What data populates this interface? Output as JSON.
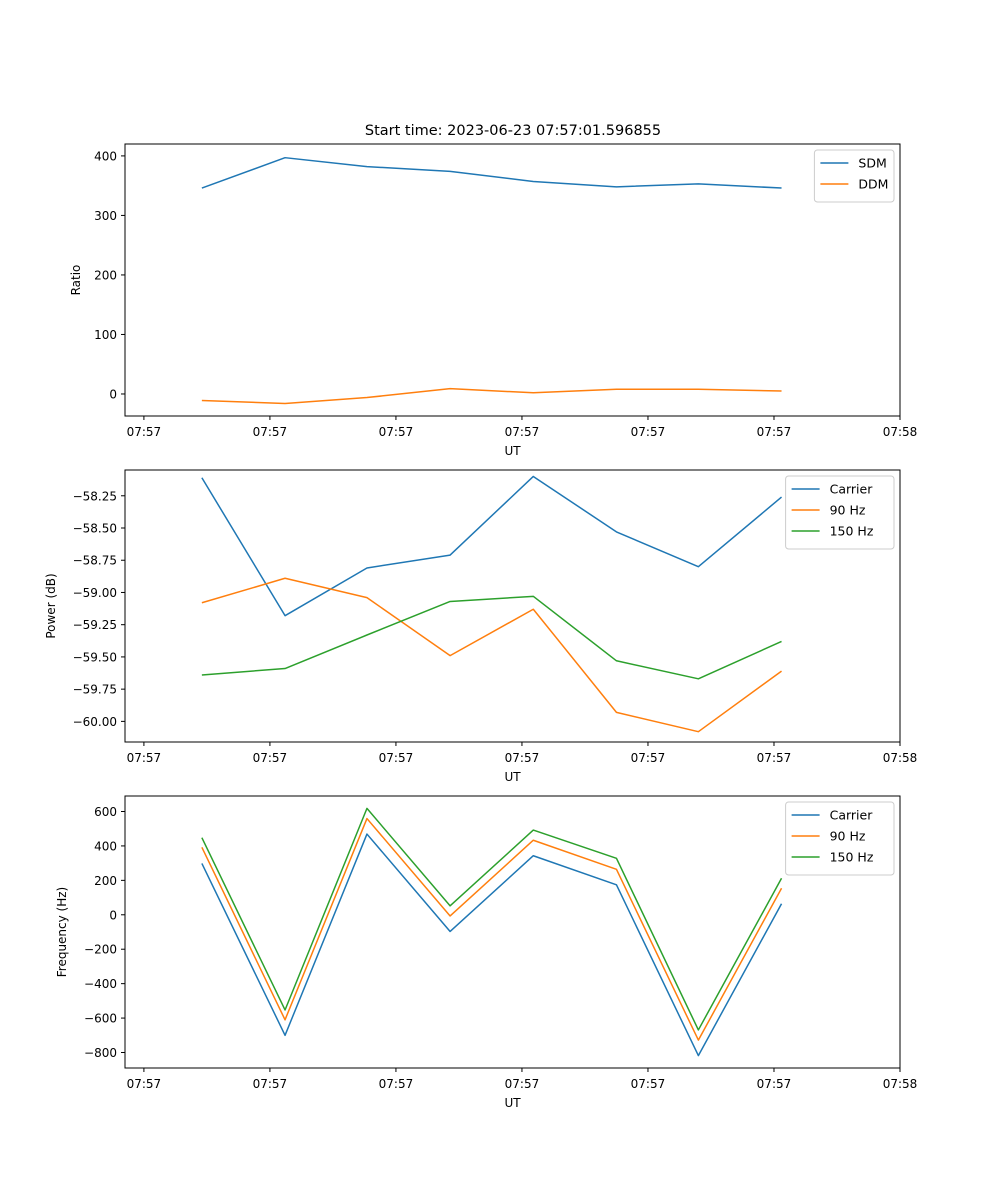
{
  "title": "Start time: 2023-06-23 07:57:01.596855",
  "colors": {
    "blue": "#1f77b4",
    "orange": "#ff7f0e",
    "green": "#2ca02c"
  },
  "chart_data": [
    {
      "type": "line",
      "xlabel": "UT",
      "ylabel": "Ratio",
      "x_tick_labels": [
        "07:57",
        "07:57",
        "07:57",
        "07:57",
        "07:57",
        "07:57",
        "07:58"
      ],
      "x_ticks": [
        0,
        1,
        2,
        3,
        4,
        5,
        6
      ],
      "xlim": [
        -0.15,
        6.0
      ],
      "x": [
        0.46,
        1.12,
        1.77,
        2.43,
        3.09,
        3.75,
        4.4,
        5.06
      ],
      "ylim": [
        -37,
        420
      ],
      "yticks": [
        0,
        100,
        200,
        300,
        400
      ],
      "ytick_labels": [
        "0",
        "100",
        "200",
        "300",
        "400"
      ],
      "grid": false,
      "legend": "top-right",
      "series": [
        {
          "name": "SDM",
          "color": "#1f77b4",
          "values": [
            346,
            397,
            382,
            374,
            357,
            348,
            353,
            346
          ]
        },
        {
          "name": "DDM",
          "color": "#ff7f0e",
          "values": [
            -11,
            -16,
            -6,
            9,
            2,
            8,
            8,
            5
          ]
        }
      ]
    },
    {
      "type": "line",
      "xlabel": "UT",
      "ylabel": "Power (dB)",
      "x_tick_labels": [
        "07:57",
        "07:57",
        "07:57",
        "07:57",
        "07:57",
        "07:57",
        "07:58"
      ],
      "x_ticks": [
        0,
        1,
        2,
        3,
        4,
        5,
        6
      ],
      "xlim": [
        -0.15,
        6.0
      ],
      "x": [
        0.46,
        1.12,
        1.77,
        2.43,
        3.09,
        3.75,
        4.4,
        5.06
      ],
      "ylim": [
        -60.16,
        -58.05
      ],
      "yticks": [
        -60.0,
        -59.75,
        -59.5,
        -59.25,
        -59.0,
        -58.75,
        -58.5,
        -58.25
      ],
      "ytick_labels": [
        "−60.00",
        "−59.75",
        "−59.50",
        "−59.25",
        "−59.00",
        "−58.75",
        "−58.50",
        "−58.25"
      ],
      "grid": false,
      "legend": "top-right",
      "series": [
        {
          "name": "Carrier",
          "color": "#1f77b4",
          "values": [
            -58.11,
            -59.18,
            -58.81,
            -58.71,
            -58.1,
            -58.53,
            -58.8,
            -58.26
          ]
        },
        {
          "name": "90 Hz",
          "color": "#ff7f0e",
          "values": [
            -59.08,
            -58.89,
            -59.04,
            -59.49,
            -59.13,
            -59.93,
            -60.08,
            -59.61
          ]
        },
        {
          "name": "150 Hz",
          "color": "#2ca02c",
          "values": [
            -59.64,
            -59.59,
            -59.33,
            -59.07,
            -59.03,
            -59.53,
            -59.67,
            -59.38
          ]
        }
      ]
    },
    {
      "type": "line",
      "xlabel": "UT",
      "ylabel": "Frequency (Hz)",
      "x_tick_labels": [
        "07:57",
        "07:57",
        "07:57",
        "07:57",
        "07:57",
        "07:57",
        "07:58"
      ],
      "x_ticks": [
        0,
        1,
        2,
        3,
        4,
        5,
        6
      ],
      "xlim": [
        -0.15,
        6.0
      ],
      "x": [
        0.46,
        1.12,
        1.77,
        2.43,
        3.09,
        3.75,
        4.4,
        5.06
      ],
      "ylim": [
        -890,
        690
      ],
      "yticks": [
        -800,
        -600,
        -400,
        -200,
        0,
        200,
        400,
        600
      ],
      "ytick_labels": [
        "−800",
        "−600",
        "−400",
        "−200",
        "0",
        "200",
        "400",
        "600"
      ],
      "grid": false,
      "legend": "top-right",
      "series": [
        {
          "name": "Carrier",
          "color": "#1f77b4",
          "values": [
            298,
            -700,
            469,
            -97,
            343,
            174,
            -818,
            64
          ]
        },
        {
          "name": "90 Hz",
          "color": "#ff7f0e",
          "values": [
            392,
            -610,
            559,
            -7,
            433,
            264,
            -728,
            154
          ]
        },
        {
          "name": "150 Hz",
          "color": "#2ca02c",
          "values": [
            448,
            -553,
            618,
            52,
            492,
            328,
            -669,
            212
          ]
        }
      ]
    }
  ]
}
